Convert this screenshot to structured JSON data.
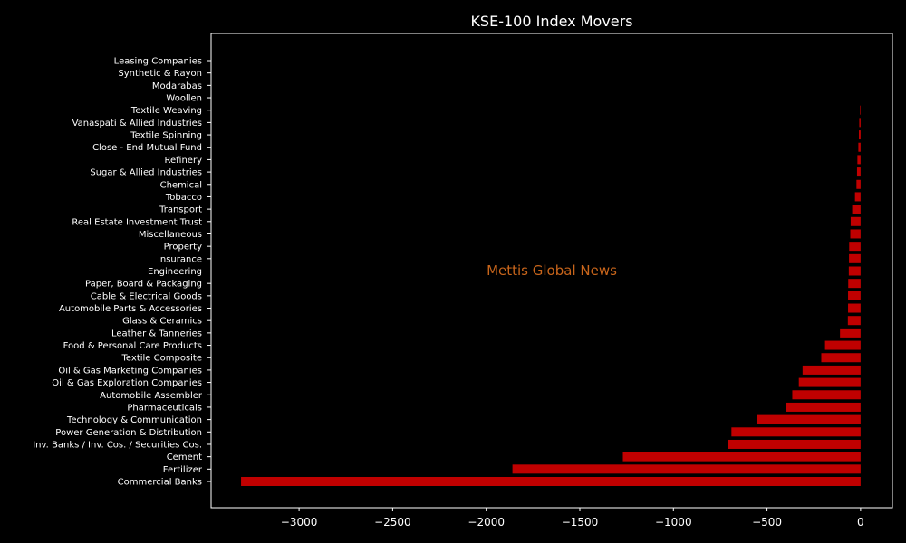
{
  "chart_data": {
    "type": "bar",
    "orientation": "horizontal",
    "title": "KSE-100 Index Movers",
    "xlabel": "",
    "ylabel": "",
    "xlim": [
      -3470,
      170
    ],
    "xticks": [
      -3000,
      -2500,
      -2000,
      -1500,
      -1000,
      -500,
      0
    ],
    "xtick_labels": [
      "−3000",
      "−2500",
      "−2000",
      "−1500",
      "−1000",
      "−500",
      "0"
    ],
    "grid": false,
    "bar_color": "#c00000",
    "background": "#000000",
    "text_color": "#ffffff",
    "watermark": {
      "text": "Mettis Global News",
      "color": "#c8651b"
    },
    "categories": [
      "Commercial Banks",
      "Fertilizer",
      "Cement",
      "Inv. Banks / Inv. Cos. / Securities Cos.",
      "Power Generation & Distribution",
      "Technology & Communication",
      "Pharmaceuticals",
      "Automobile Assembler",
      "Oil & Gas Exploration Companies",
      "Oil & Gas Marketing Companies",
      "Textile Composite",
      "Food & Personal Care Products",
      "Leather & Tanneries",
      "Glass & Ceramics",
      "Automobile Parts & Accessories",
      "Cable & Electrical Goods",
      "Paper, Board & Packaging",
      "Engineering",
      "Insurance",
      "Property",
      "Miscellaneous",
      "Real Estate Investment Trust",
      "Transport",
      "Tobacco",
      "Chemical",
      "Sugar & Allied Industries",
      "Refinery",
      "Close - End Mutual Fund",
      "Textile Spinning",
      "Vanaspati & Allied Industries",
      "Textile Weaving",
      "Woollen",
      "Modarabas",
      "Synthetic & Rayon",
      "Leasing Companies"
    ],
    "values": [
      -3310,
      -1860,
      -1270,
      -710,
      -690,
      -555,
      -400,
      -365,
      -330,
      -310,
      -210,
      -190,
      -110,
      -68,
      -67,
      -67,
      -66,
      -63,
      -62,
      -61,
      -55,
      -53,
      -45,
      -30,
      -22,
      -19,
      -17,
      -12,
      -9,
      -7,
      -3,
      0,
      0,
      0,
      0
    ]
  }
}
